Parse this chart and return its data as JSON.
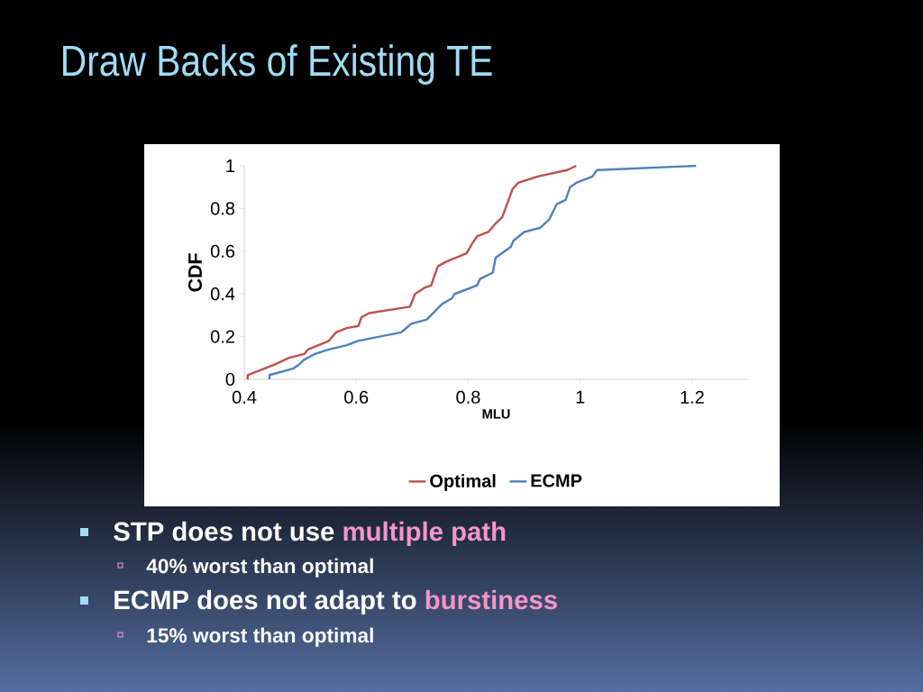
{
  "chart_data": {
    "type": "line",
    "title": "Draw Backs of Existing TE",
    "xlabel": "MLU",
    "ylabel": "CDF",
    "xlim": [
      0.4,
      1.3
    ],
    "ylim": [
      0,
      1
    ],
    "xticks": [
      0.4,
      0.6,
      0.8,
      1,
      1.2
    ],
    "yticks": [
      0,
      0.2,
      0.4,
      0.6,
      0.8,
      1
    ],
    "legend": "bottom",
    "grid": false,
    "series": [
      {
        "name": "Optimal",
        "color": "#c0504d",
        "x": [
          0.406,
          0.406,
          0.455,
          0.479,
          0.508,
          0.514,
          0.551,
          0.564,
          0.583,
          0.604,
          0.609,
          0.623,
          0.696,
          0.699,
          0.705,
          0.723,
          0.734,
          0.739,
          0.746,
          0.76,
          0.797,
          0.808,
          0.816,
          0.836,
          0.849,
          0.861,
          0.879,
          0.889,
          0.924,
          0.977,
          0.993
        ],
        "values": [
          0,
          0.02,
          0.07,
          0.1,
          0.12,
          0.14,
          0.18,
          0.22,
          0.24,
          0.25,
          0.29,
          0.31,
          0.34,
          0.36,
          0.4,
          0.43,
          0.44,
          0.48,
          0.53,
          0.55,
          0.59,
          0.64,
          0.67,
          0.69,
          0.73,
          0.76,
          0.89,
          0.92,
          0.95,
          0.98,
          1
        ]
      },
      {
        "name": "ECMP",
        "color": "#4f81bd",
        "x": [
          0.445,
          0.445,
          0.487,
          0.498,
          0.506,
          0.527,
          0.551,
          0.583,
          0.603,
          0.68,
          0.685,
          0.698,
          0.726,
          0.752,
          0.771,
          0.776,
          0.816,
          0.821,
          0.844,
          0.849,
          0.876,
          0.881,
          0.9,
          0.929,
          0.945,
          0.958,
          0.974,
          0.982,
          0.993,
          1.022,
          1.03,
          1.207
        ],
        "values": [
          0,
          0.02,
          0.05,
          0.07,
          0.09,
          0.12,
          0.14,
          0.16,
          0.18,
          0.22,
          0.23,
          0.26,
          0.28,
          0.35,
          0.38,
          0.4,
          0.44,
          0.47,
          0.5,
          0.57,
          0.62,
          0.65,
          0.69,
          0.71,
          0.75,
          0.82,
          0.84,
          0.9,
          0.92,
          0.95,
          0.98,
          1
        ]
      }
    ],
    "annotations": [
      "STP does not use",
      "multiple path",
      "40% worst than optimal",
      "ECMP does not adapt to",
      "burstiness",
      "15% worst than optimal"
    ]
  }
}
